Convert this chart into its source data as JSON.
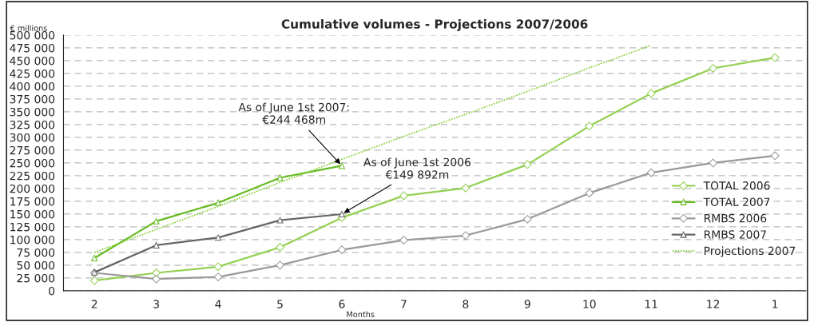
{
  "chart_data": {
    "type": "line",
    "title": "Cumulative volumes - Projections 2007/2006",
    "ylabel": "€ millions",
    "xlabel": "Months",
    "categories": [
      "2",
      "3",
      "4",
      "5",
      "6",
      "7",
      "8",
      "9",
      "10",
      "11",
      "12",
      "1"
    ],
    "series": [
      {
        "name": "TOTAL 2006",
        "color": "#92d050",
        "marker": "diamond",
        "values": [
          20000,
          35000,
          47000,
          85000,
          143000,
          186000,
          201000,
          247000,
          322000,
          386000,
          435000,
          456000
        ]
      },
      {
        "name": "TOTAL 2007",
        "color": "#66bb22",
        "marker": "triangle",
        "values": [
          64000,
          136000,
          172000,
          221000,
          244468,
          null,
          null,
          null,
          null,
          null,
          null,
          null
        ]
      },
      {
        "name": "RMBS 2006",
        "color": "#999999",
        "marker": "diamond",
        "values": [
          35000,
          23000,
          27000,
          50000,
          80000,
          99000,
          108000,
          140000,
          191000,
          231000,
          250000,
          264000
        ]
      },
      {
        "name": "RMBS 2007",
        "color": "#666666",
        "marker": "triangle",
        "values": [
          36000,
          89000,
          104000,
          138000,
          149892,
          null,
          null,
          null,
          null,
          null,
          null,
          null
        ]
      },
      {
        "name": "Projections 2007",
        "color": "#7ccc2a",
        "marker": "none",
        "line_style": "dotted",
        "values": [
          75000,
          120000,
          165000,
          212000,
          257000,
          302000,
          345000,
          390000,
          436000,
          480000,
          null,
          null
        ]
      }
    ],
    "ylim": [
      0,
      500000
    ],
    "yticks": [
      {
        "value": 0,
        "label": "0"
      },
      {
        "value": 25000,
        "label": "25 000"
      },
      {
        "value": 50000,
        "label": "50 000"
      },
      {
        "value": 75000,
        "label": "75 000"
      },
      {
        "value": 100000,
        "label": "100 000"
      },
      {
        "value": 125000,
        "label": "125 000"
      },
      {
        "value": 150000,
        "label": "150 000"
      },
      {
        "value": 175000,
        "label": "175 000"
      },
      {
        "value": 200000,
        "label": "200 000"
      },
      {
        "value": 225000,
        "label": "225 000"
      },
      {
        "value": 250000,
        "label": "250 000"
      },
      {
        "value": 275000,
        "label": "275 000"
      },
      {
        "value": 300000,
        "label": "300 000"
      },
      {
        "value": 325000,
        "label": "325 000"
      },
      {
        "value": 350000,
        "label": "350 000"
      },
      {
        "value": 375000,
        "label": "375 000"
      },
      {
        "value": 400000,
        "label": "400 000"
      },
      {
        "value": 425000,
        "label": "425 000"
      },
      {
        "value": 450000,
        "label": "450 000"
      },
      {
        "value": 475000,
        "label": "475 000"
      },
      {
        "value": 500000,
        "label": "500 000"
      }
    ],
    "grid": "y",
    "legend": "right",
    "annotations": [
      {
        "text": "As of June 1st 2007:\n€244 468m",
        "x": "6",
        "y": 244468
      },
      {
        "text": "As of June 1st 2006\n€149 892m",
        "x": "6",
        "y": 149892
      }
    ]
  }
}
